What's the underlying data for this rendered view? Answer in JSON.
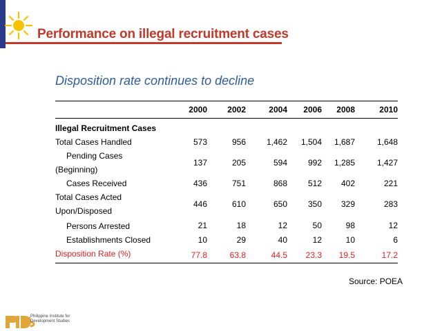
{
  "slide": {
    "title": "Performance on illegal recruitment cases",
    "subtitle": "Disposition rate continues to decline",
    "source": "Source: POEA",
    "logo_name": "Philippine Institute for Development Studies"
  },
  "table": {
    "columns": [
      "2000",
      "2002",
      "2004",
      "2006",
      "2008",
      "2010"
    ],
    "group_heading": "Illegal Recruitment Cases",
    "rows": [
      {
        "label": "Total Cases Handled",
        "values": [
          "573",
          "956",
          "1,462",
          "1,504",
          "1,687",
          "1,648"
        ]
      },
      {
        "label": "Pending Cases",
        "label2": "(Beginning)",
        "values": [
          "137",
          "205",
          "594",
          "992",
          "1,285",
          "1,427"
        ]
      },
      {
        "label": "Cases Received",
        "values": [
          "436",
          "751",
          "868",
          "512",
          "402",
          "221"
        ]
      },
      {
        "label": "Total Cases Acted",
        "label2": "Upon/Disposed",
        "values": [
          "446",
          "610",
          "650",
          "350",
          "329",
          "283"
        ]
      },
      {
        "label": "Persons Arrested",
        "values": [
          "21",
          "18",
          "12",
          "50",
          "98",
          "12"
        ]
      },
      {
        "label": "Establishments Closed",
        "values": [
          "10",
          "29",
          "40",
          "12",
          "10",
          "6"
        ]
      },
      {
        "label": "Disposition Rate (%)",
        "values": [
          "77.8",
          "63.8",
          "44.5",
          "23.3",
          "19.5",
          "17.2"
        ]
      }
    ]
  },
  "colors": {
    "title": "#c0392b",
    "subtitle": "#2e5c9a",
    "highlight_row": "#e02020",
    "sun": "#f5c400"
  }
}
